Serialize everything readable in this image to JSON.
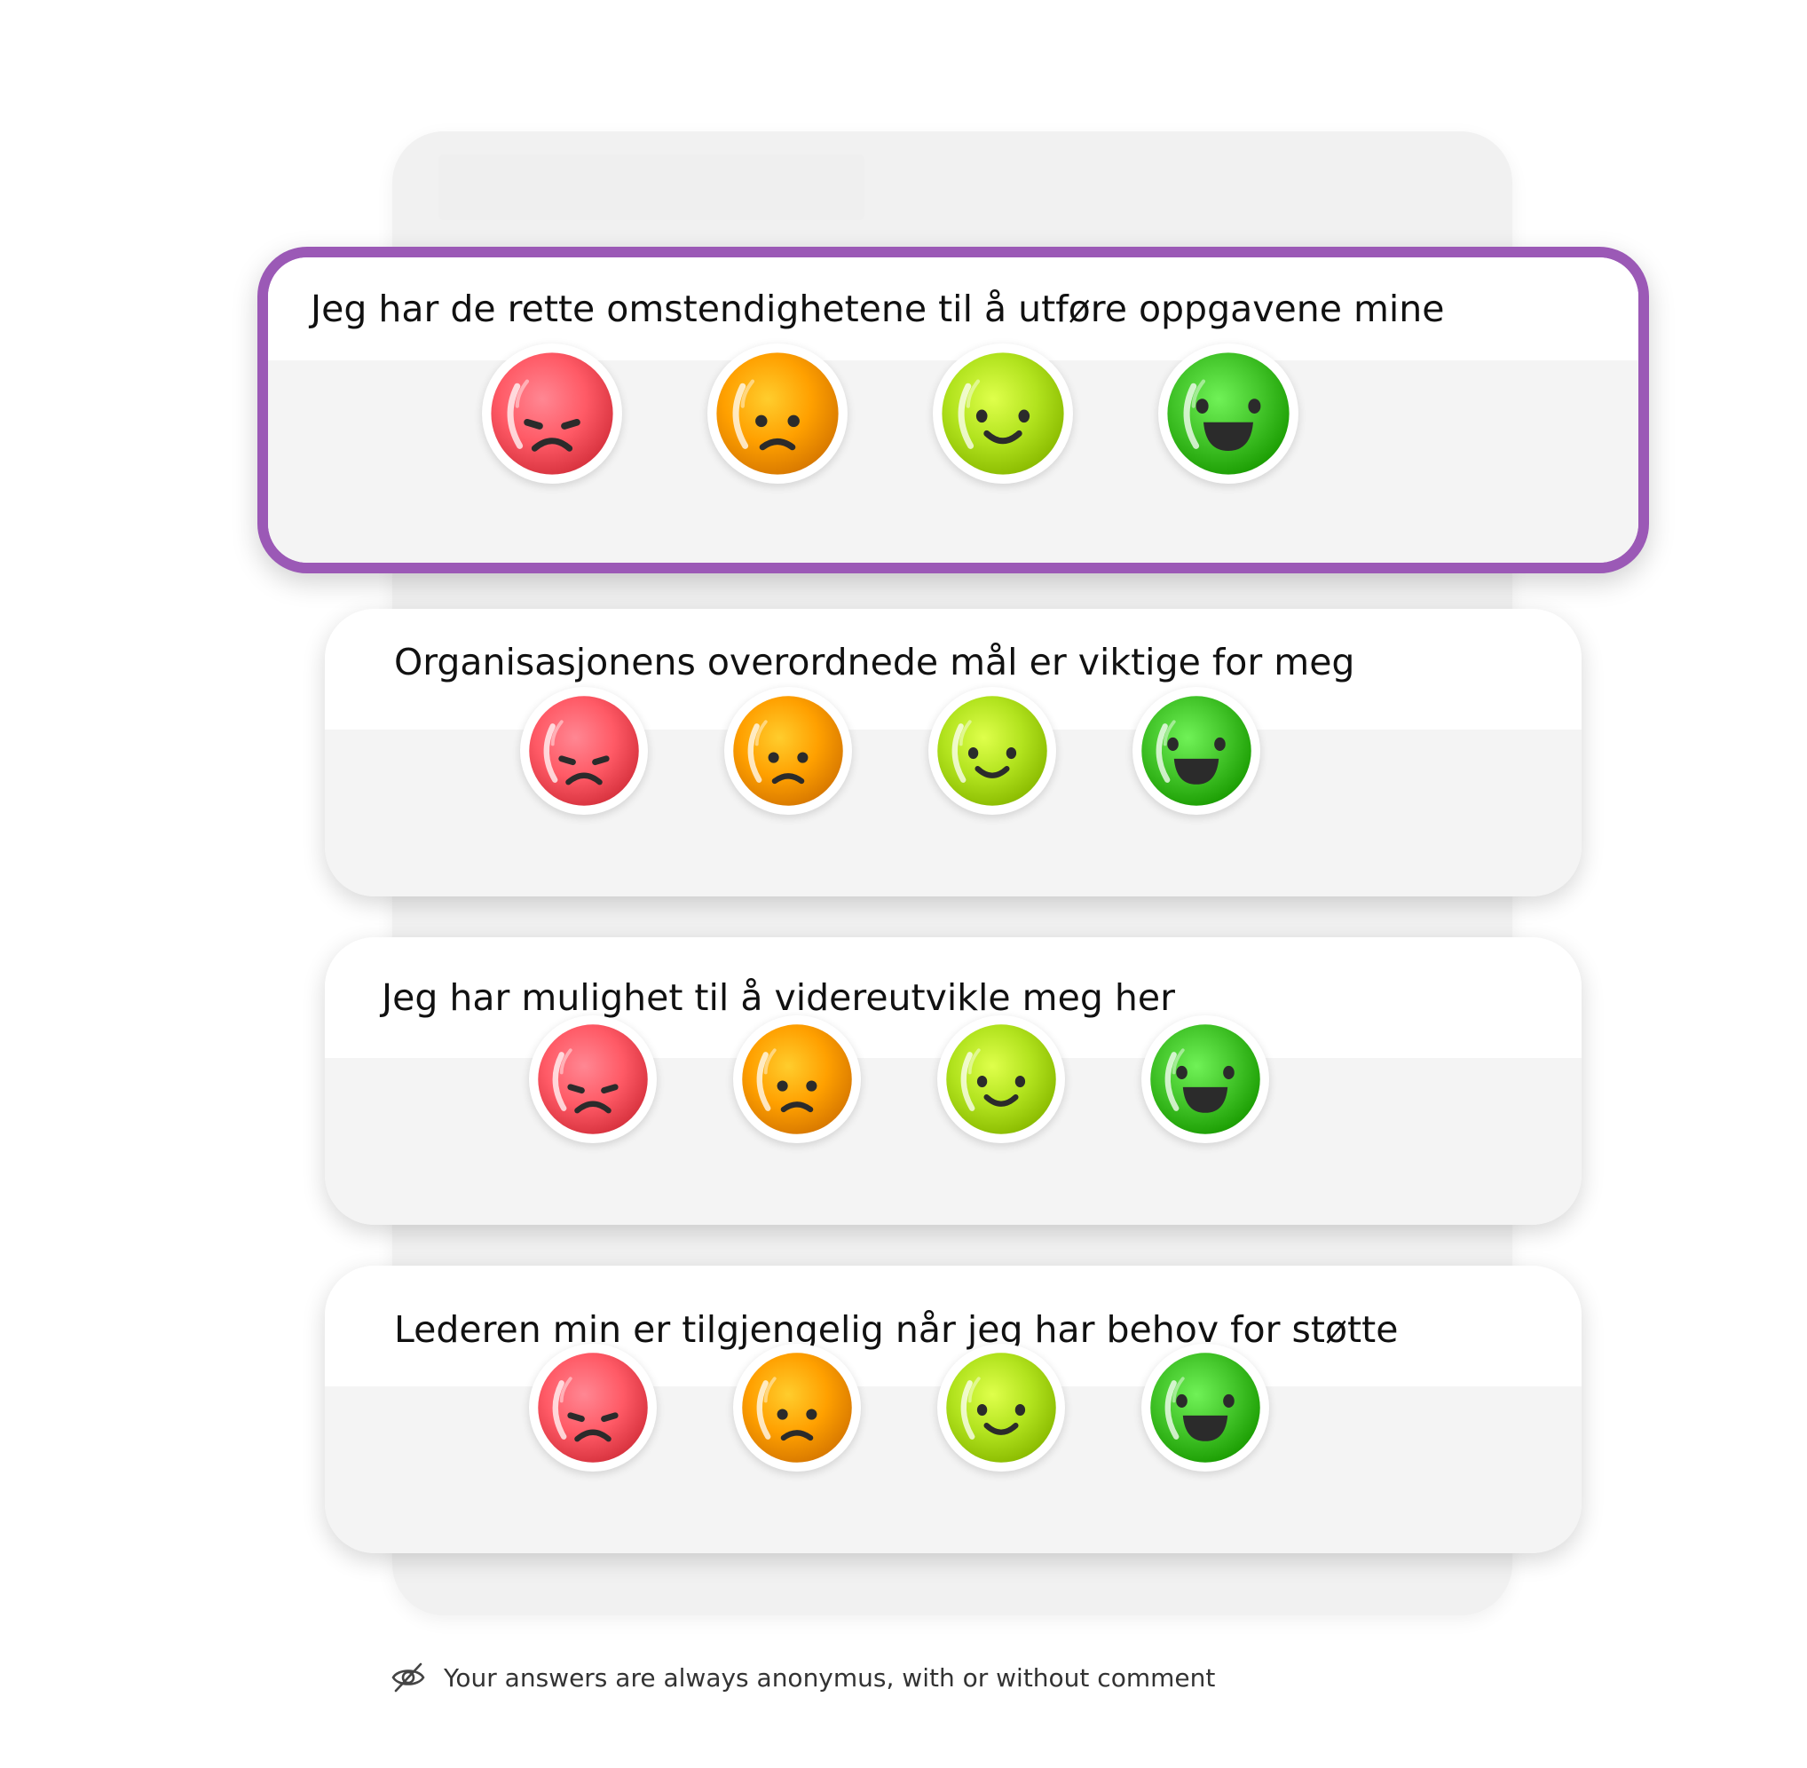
{
  "questions": [
    {
      "text": "Jeg har de rette omstendighetene til å utføre oppgavene mine",
      "selected": true
    },
    {
      "text": "Organisasjonens overordnede mål er viktige for meg",
      "selected": false
    },
    {
      "text": "Jeg har mulighet til å videreutvikle meg her",
      "selected": false
    },
    {
      "text": "Lederen min er tilgjengelig når jeg har behov for støtte",
      "selected": false
    }
  ],
  "rating_options": [
    {
      "icon": "angry-face-icon",
      "color": "#ff5a66"
    },
    {
      "icon": "sad-face-icon",
      "color": "#ffa000"
    },
    {
      "icon": "smiling-face-icon",
      "color": "#b2e31e"
    },
    {
      "icon": "grinning-face-icon",
      "color": "#43c52a"
    }
  ],
  "footer": {
    "icon": "eye-slash-icon",
    "note": "Your answers are always anonymus, with or without comment"
  },
  "accent_color": "#9b59b6"
}
